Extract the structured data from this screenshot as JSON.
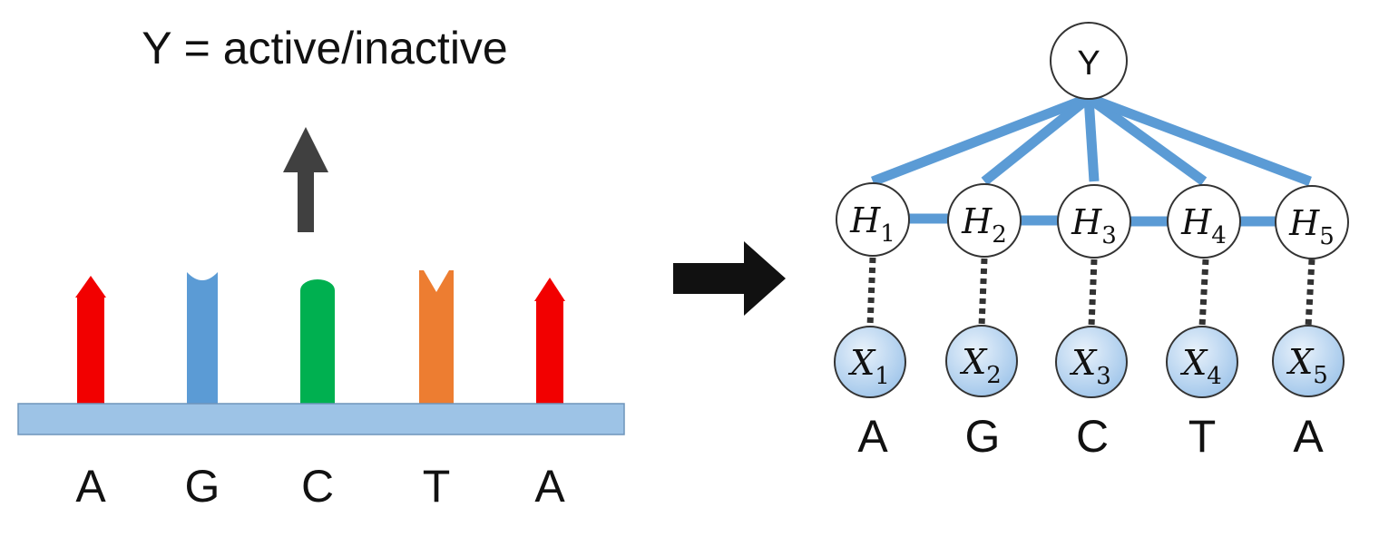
{
  "left": {
    "title": "Y = active/inactive",
    "bases": [
      {
        "letter": "A",
        "color": "#f20000",
        "shape": "arrow-up-icon"
      },
      {
        "letter": "G",
        "color": "#5b9bd5",
        "shape": "cup-icon"
      },
      {
        "letter": "C",
        "color": "#00b050",
        "shape": "round-top-icon"
      },
      {
        "letter": "T",
        "color": "#ed7d31",
        "shape": "notch-icon"
      },
      {
        "letter": "A",
        "color": "#f20000",
        "shape": "arrow-up-icon"
      }
    ],
    "backbone_color": "#9dc3e6",
    "arrow_color": "#404040"
  },
  "transform_arrow_color": "#111111",
  "right": {
    "root": {
      "label": "Y"
    },
    "hidden": [
      {
        "base": "H",
        "sub": "1"
      },
      {
        "base": "H",
        "sub": "2"
      },
      {
        "base": "H",
        "sub": "3"
      },
      {
        "base": "H",
        "sub": "4"
      },
      {
        "base": "H",
        "sub": "5"
      }
    ],
    "observed": [
      {
        "base": "X",
        "sub": "1"
      },
      {
        "base": "X",
        "sub": "2"
      },
      {
        "base": "X",
        "sub": "3"
      },
      {
        "base": "X",
        "sub": "4"
      },
      {
        "base": "X",
        "sub": "5"
      }
    ],
    "letters": [
      "A",
      "G",
      "C",
      "T",
      "A"
    ],
    "edge_color": "#5b9bd5",
    "observed_fill": "#bdd7ee"
  }
}
